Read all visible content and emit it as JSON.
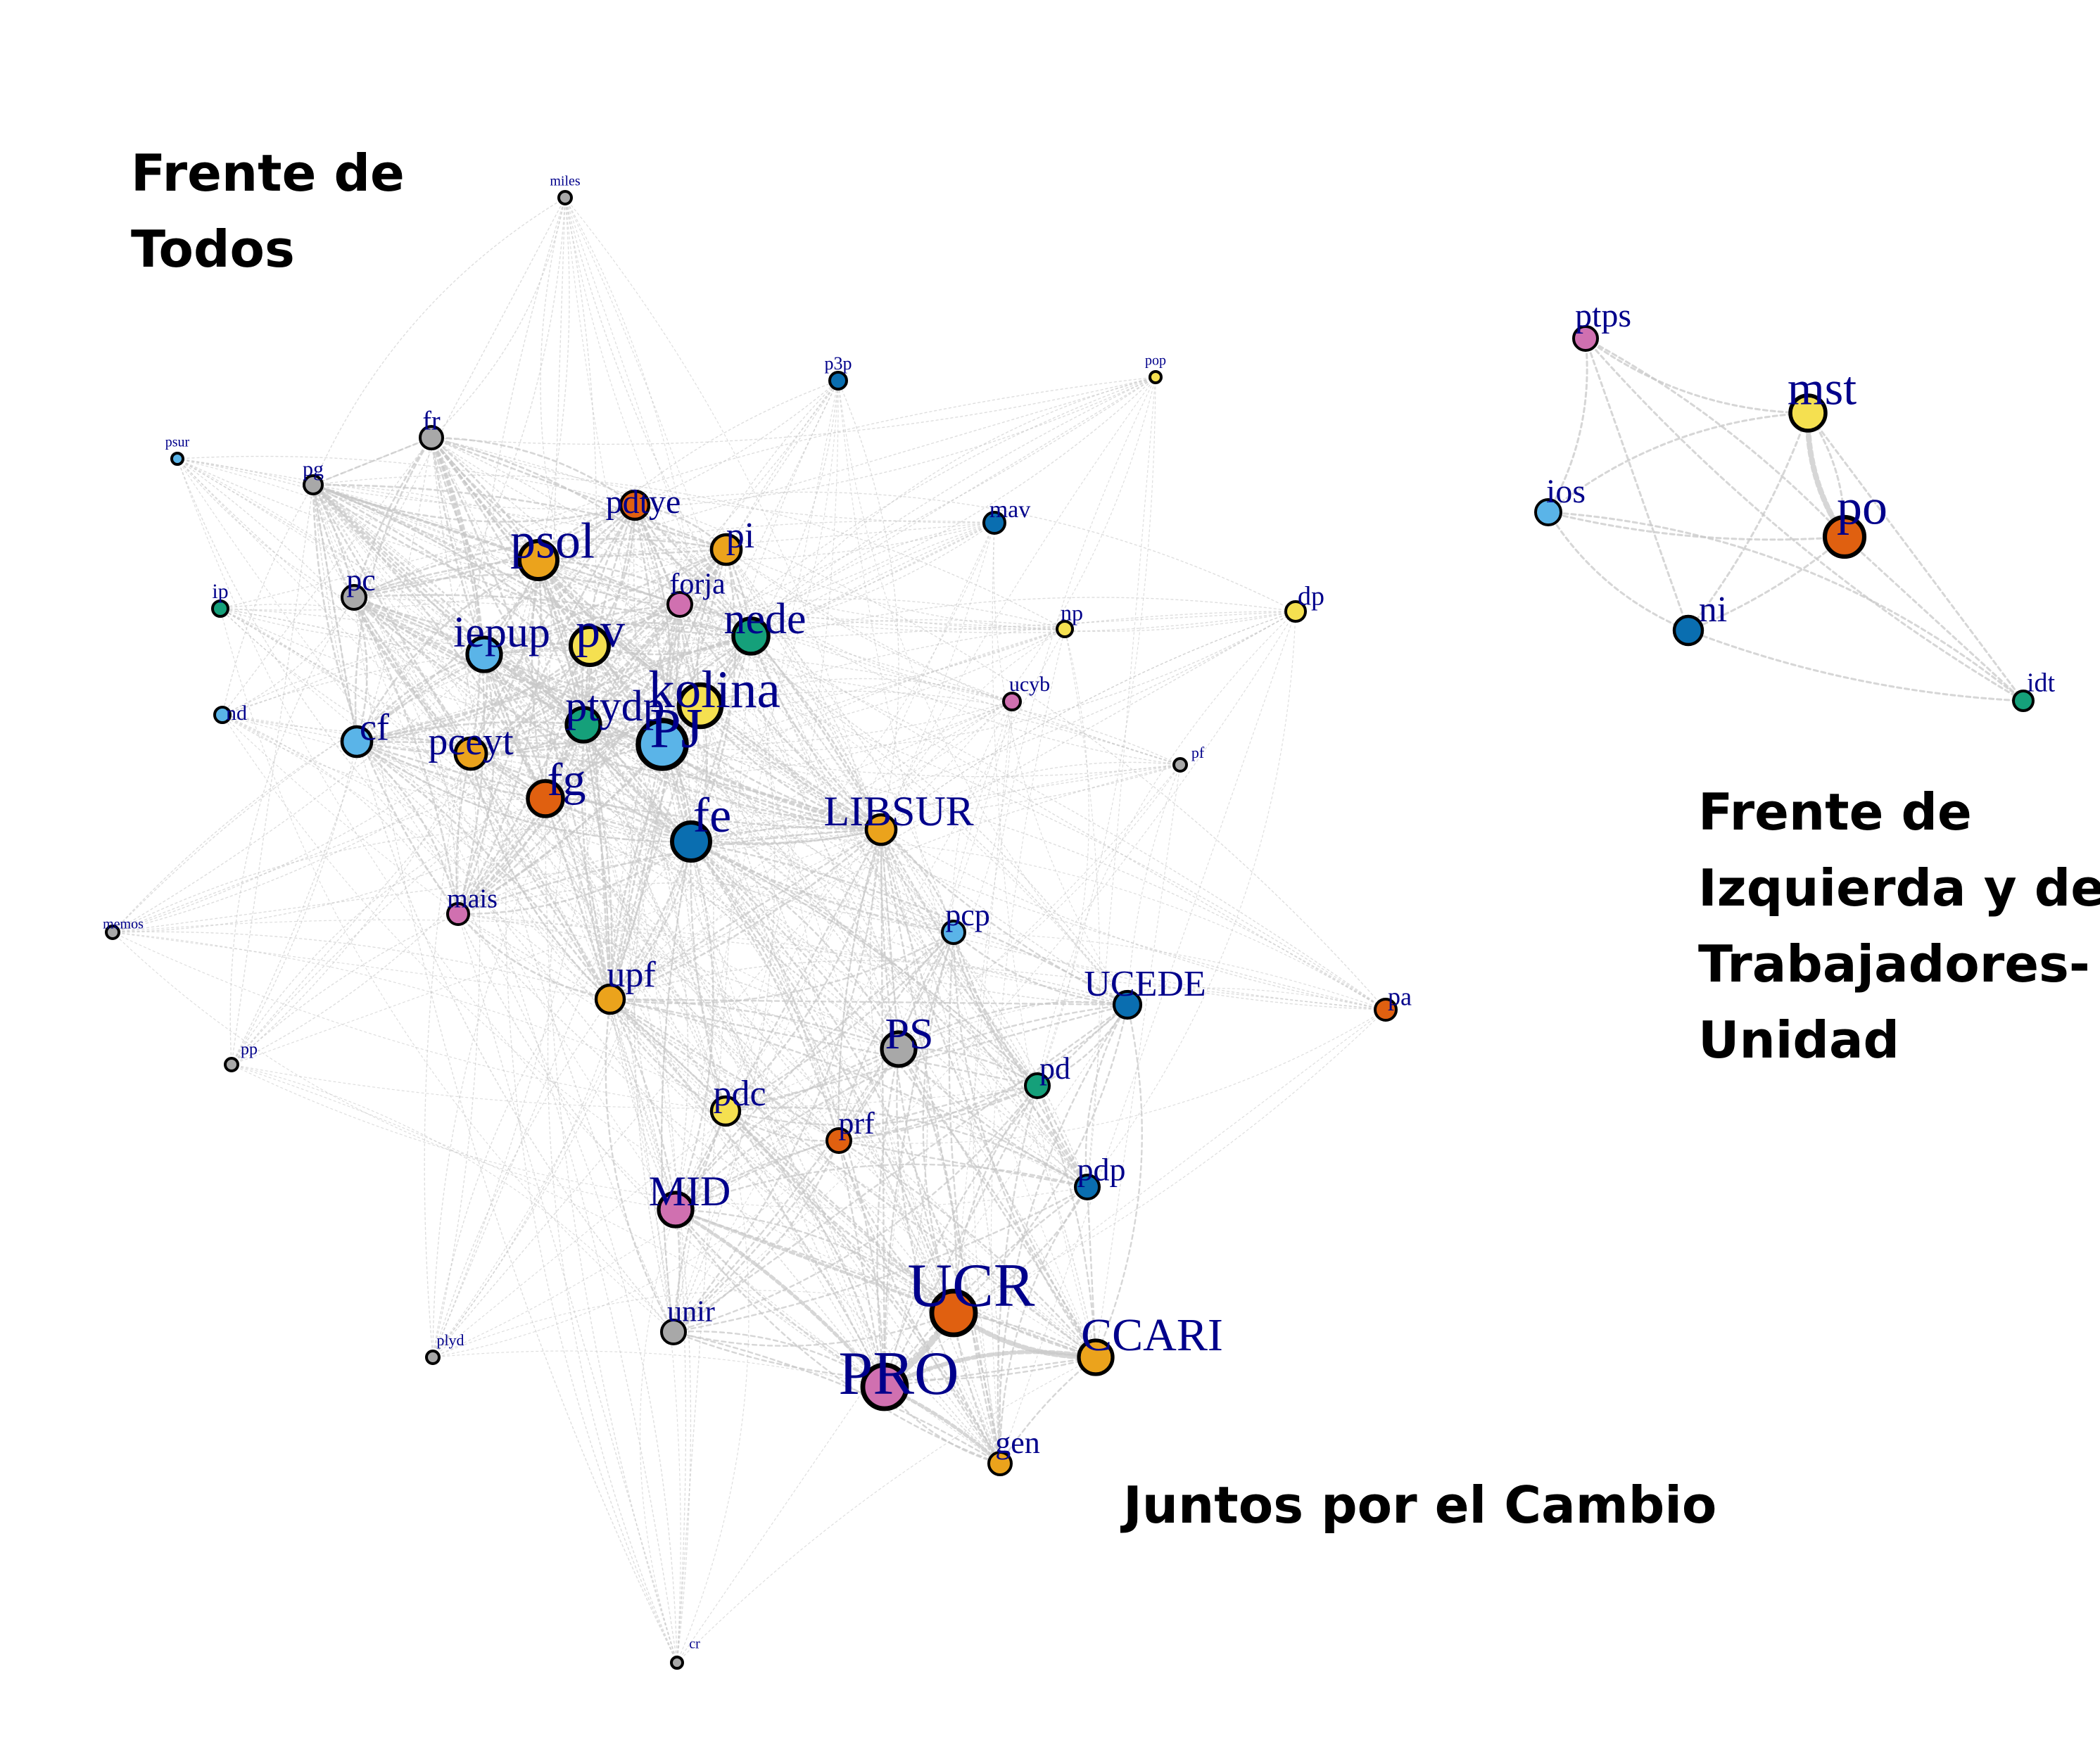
{
  "groups": {
    "fdt": {
      "line1": "Frente de",
      "line2": "Todos"
    },
    "fit": {
      "line1": "Frente de",
      "line2": "Izquierda y de",
      "line3": "Trabajadores-",
      "line4": "Unidad"
    },
    "jxc": {
      "line1": "Juntos por el Cambio"
    }
  },
  "colors": {
    "edge": "#c8c8c8",
    "label": "#00008b",
    "node_border": "#000000",
    "orange": "#e06010",
    "yellow": "#f5e050",
    "skyblue": "#5ab4e8",
    "blue": "#0a6eb0",
    "green": "#15a07a",
    "pink": "#d070b0",
    "gray": "#a8a8a8",
    "gold": "#eba31c"
  },
  "nodes": [
    {
      "id": "miles",
      "label": "miles",
      "color": "gray"
    },
    {
      "id": "p3p",
      "label": "p3p",
      "color": "blue"
    },
    {
      "id": "pop",
      "label": "pop",
      "color": "yellow"
    },
    {
      "id": "psur",
      "label": "psur",
      "color": "skyblue"
    },
    {
      "id": "pg",
      "label": "pg",
      "color": "gray"
    },
    {
      "id": "fr",
      "label": "fr",
      "color": "gray"
    },
    {
      "id": "pdtye",
      "label": "pdtye",
      "color": "orange"
    },
    {
      "id": "psol",
      "label": "psol",
      "color": "gold"
    },
    {
      "id": "pi",
      "label": "pi",
      "color": "gold"
    },
    {
      "id": "mav",
      "label": "mav",
      "color": "blue"
    },
    {
      "id": "ip",
      "label": "ip",
      "color": "green"
    },
    {
      "id": "pc",
      "label": "pc",
      "color": "gray"
    },
    {
      "id": "forja",
      "label": "forja",
      "color": "pink"
    },
    {
      "id": "nede",
      "label": "nede",
      "color": "green"
    },
    {
      "id": "np",
      "label": "np",
      "color": "yellow"
    },
    {
      "id": "dp",
      "label": "dp",
      "color": "yellow"
    },
    {
      "id": "iepup",
      "label": "iepup",
      "color": "skyblue"
    },
    {
      "id": "pv",
      "label": "pv",
      "color": "yellow"
    },
    {
      "id": "kolina",
      "label": "kolina",
      "color": "yellow"
    },
    {
      "id": "ucyb",
      "label": "ucyb",
      "color": "pink"
    },
    {
      "id": "nd",
      "label": "nd",
      "color": "skyblue"
    },
    {
      "id": "cf",
      "label": "cf",
      "color": "skyblue"
    },
    {
      "id": "pceyt",
      "label": "pceyt",
      "color": "gold"
    },
    {
      "id": "ptydp",
      "label": "ptydp",
      "color": "green"
    },
    {
      "id": "pj",
      "label": "PJ",
      "color": "skyblue"
    },
    {
      "id": "pf",
      "label": "pf",
      "color": "gray"
    },
    {
      "id": "fg",
      "label": "fg",
      "color": "orange"
    },
    {
      "id": "fe",
      "label": "fe",
      "color": "blue"
    },
    {
      "id": "libsur",
      "label": "LIBSUR",
      "color": "gold"
    },
    {
      "id": "memos",
      "label": "memos",
      "color": "gray"
    },
    {
      "id": "mais",
      "label": "mais",
      "color": "pink"
    },
    {
      "id": "pcp",
      "label": "pcp",
      "color": "skyblue"
    },
    {
      "id": "upf",
      "label": "upf",
      "color": "gold"
    },
    {
      "id": "ucede",
      "label": "UCEDE",
      "color": "blue"
    },
    {
      "id": "pa",
      "label": "pa",
      "color": "orange"
    },
    {
      "id": "pp",
      "label": "pp",
      "color": "gray"
    },
    {
      "id": "ps",
      "label": "PS",
      "color": "gray"
    },
    {
      "id": "pd",
      "label": "pd",
      "color": "green"
    },
    {
      "id": "pdc",
      "label": "pdc",
      "color": "yellow"
    },
    {
      "id": "prf",
      "label": "prf",
      "color": "orange"
    },
    {
      "id": "pdp",
      "label": "pdp",
      "color": "blue"
    },
    {
      "id": "mid",
      "label": "MID",
      "color": "pink"
    },
    {
      "id": "ucr",
      "label": "UCR",
      "color": "orange"
    },
    {
      "id": "unir",
      "label": "unir",
      "color": "gray"
    },
    {
      "id": "plyd",
      "label": "plyd",
      "color": "gray"
    },
    {
      "id": "ccari",
      "label": "CCARI",
      "color": "gold"
    },
    {
      "id": "pro",
      "label": "PRO",
      "color": "pink"
    },
    {
      "id": "gen",
      "label": "gen",
      "color": "gold"
    },
    {
      "id": "cr",
      "label": "cr",
      "color": "gray"
    },
    {
      "id": "ptps",
      "label": "ptps",
      "color": "pink"
    },
    {
      "id": "mst",
      "label": "mst",
      "color": "yellow"
    },
    {
      "id": "ios",
      "label": "ios",
      "color": "skyblue"
    },
    {
      "id": "po",
      "label": "po",
      "color": "orange"
    },
    {
      "id": "ni",
      "label": "ni",
      "color": "blue"
    },
    {
      "id": "idt",
      "label": "idt",
      "color": "green"
    }
  ]
}
